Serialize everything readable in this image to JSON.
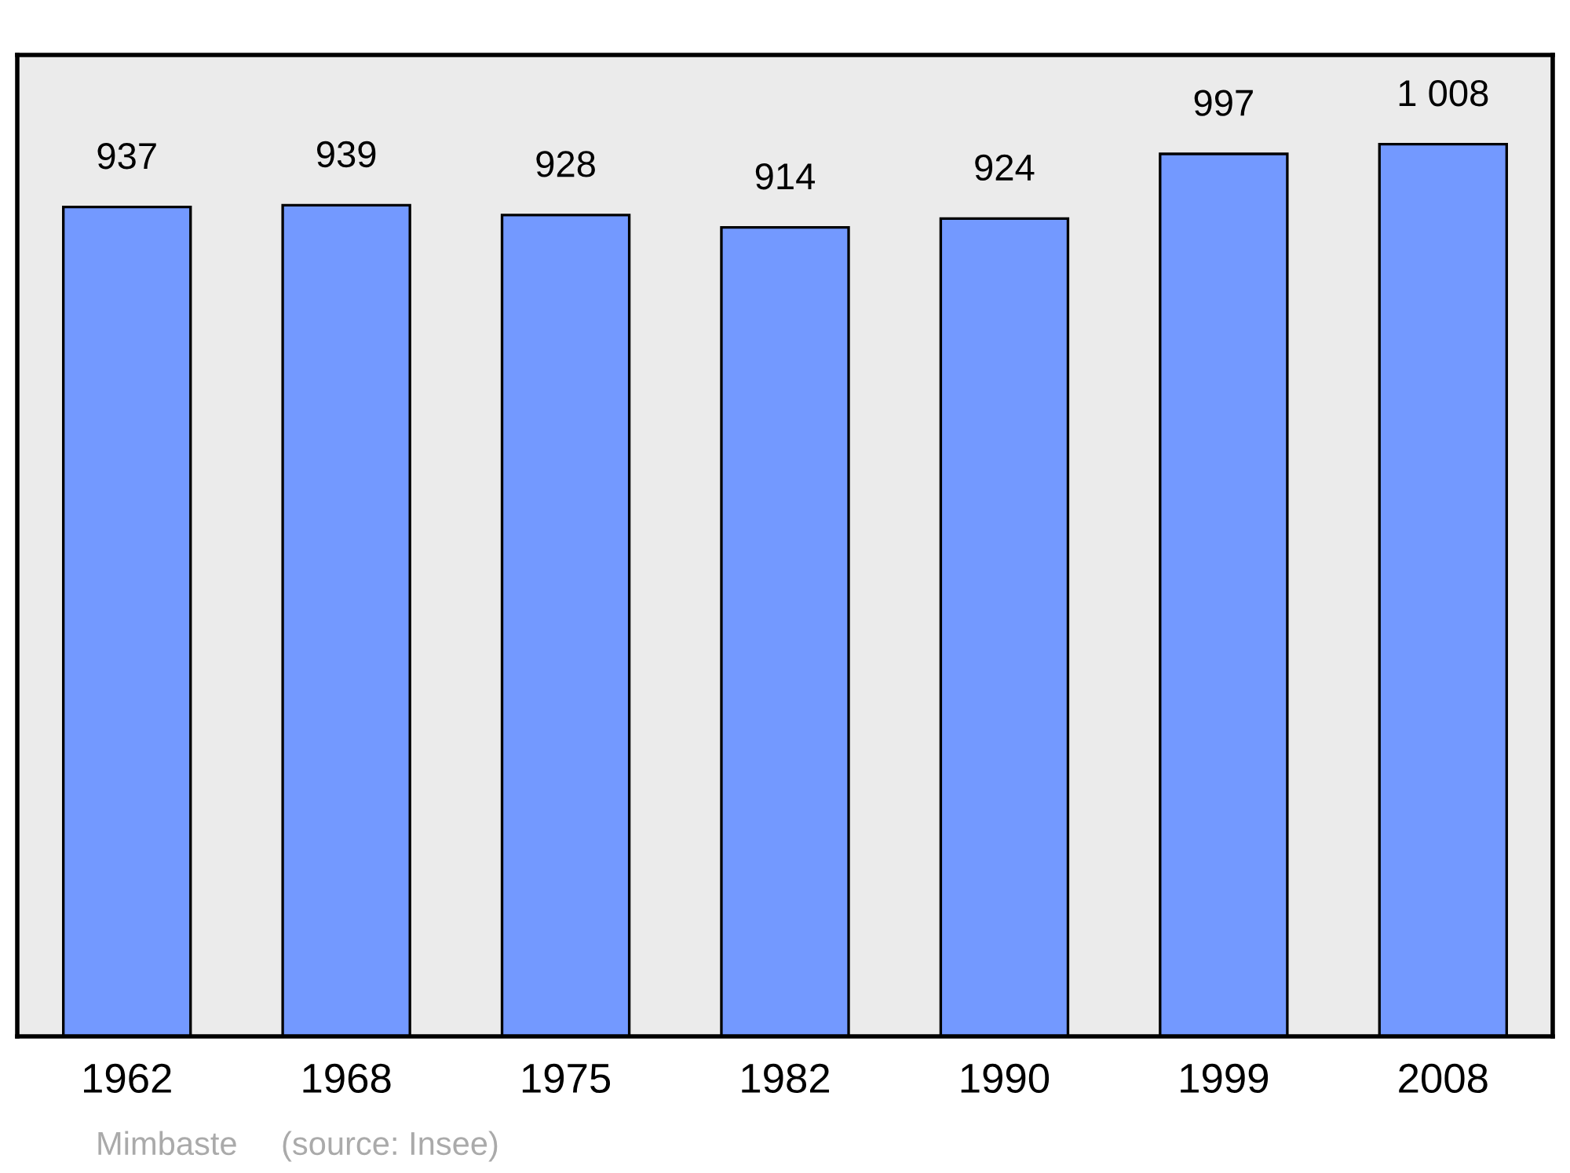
{
  "chart_data": {
    "type": "bar",
    "categories": [
      "1962",
      "1968",
      "1975",
      "1982",
      "1990",
      "1999",
      "2008"
    ],
    "values": [
      937,
      939,
      928,
      914,
      924,
      997,
      1008
    ],
    "value_labels": [
      "937",
      "939",
      "928",
      "914",
      "924",
      "997",
      "1 008"
    ],
    "color": "#7399ff",
    "annotations": [
      "Mimbaste",
      "(source: Insee)"
    ]
  }
}
